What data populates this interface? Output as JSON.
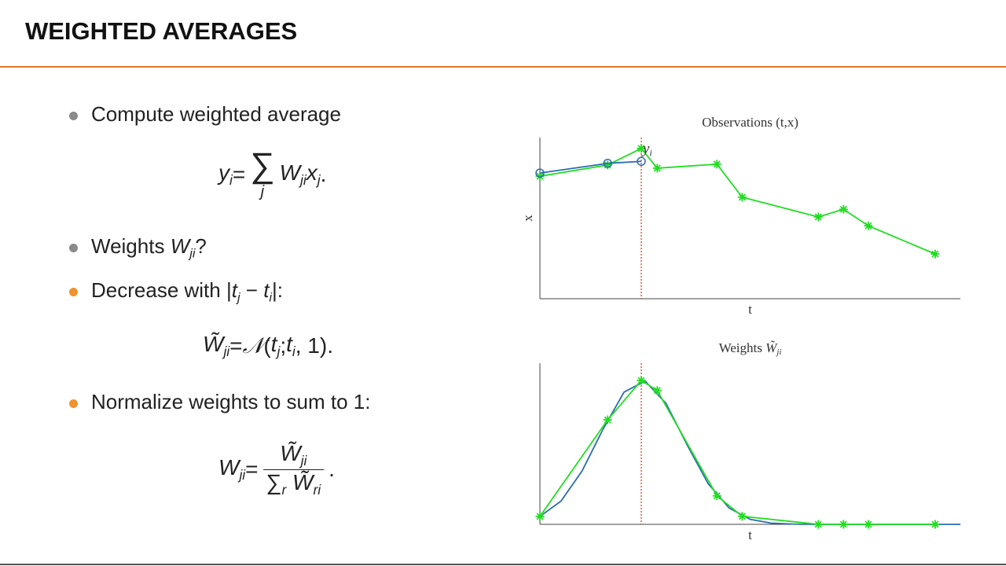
{
  "header": {
    "title": "WEIGHTED AVERAGES"
  },
  "bullets": [
    {
      "color": "#8a8a8a",
      "text": [
        {
          "n": "Compute weighted average"
        }
      ],
      "formula": [
        {
          "t": "y",
          "s": "i"
        },
        {
          "n": " = "
        },
        {
          "big": "∑",
          "under": "j"
        },
        {
          "t": "W",
          "s": "ji"
        },
        {
          "t": "x",
          "s": "j"
        },
        {
          "n": "."
        }
      ]
    },
    {
      "color": "#8a8a8a",
      "text": [
        {
          "n": "Weights "
        },
        {
          "t": "W",
          "s": "ji"
        },
        {
          "n": "?"
        }
      ]
    },
    {
      "color": "#f0922e",
      "text": [
        {
          "n": "Decrease with |"
        },
        {
          "t": "t",
          "s": "j"
        },
        {
          "n": " − "
        },
        {
          "t": "t",
          "s": "i"
        },
        {
          "n": "|:"
        }
      ],
      "formula": [
        {
          "t": "W̃",
          "s": "ji"
        },
        {
          "n": " = "
        },
        {
          "t": "𝒩"
        },
        {
          "n": "("
        },
        {
          "t": "t",
          "s": "j"
        },
        {
          "n": "; "
        },
        {
          "t": "t",
          "s": "i"
        },
        {
          "n": ", 1)."
        }
      ]
    },
    {
      "color": "#f0922e",
      "text": [
        {
          "n": "Normalize weights to sum to 1:"
        }
      ],
      "formula": [
        {
          "t": "W",
          "s": "ji"
        },
        {
          "n": " = "
        },
        {
          "num": [
            {
              "t": "W̃",
              "s": "ji"
            }
          ],
          "den": [
            {
              "n": "∑"
            },
            {
              "t": "",
              "s": "r"
            },
            {
              "n": " "
            },
            {
              "t": "W̃",
              "s": "ri"
            }
          ]
        },
        {
          "n": "."
        }
      ]
    }
  ],
  "chart_data": [
    {
      "type": "line",
      "title": "Observations (t,x)",
      "xlabel": "t",
      "ylabel": "x",
      "xlim": [
        0,
        10
      ],
      "ylim": [
        0,
        4
      ],
      "vline": 2.41,
      "vline_color": "#d9402b",
      "annotation": {
        "t": "y",
        "s": "i"
      },
      "series": [
        {
          "color": "#22dd22",
          "marker": "star",
          "x": [
            0,
            1.61,
            2.41,
            2.79,
            4.21,
            4.81,
            6.62,
            7.22,
            7.81,
            9.4
          ],
          "values": [
            3.04,
            3.32,
            3.73,
            3.24,
            3.34,
            2.52,
            2.03,
            2.22,
            1.81,
            1.11
          ]
        },
        {
          "color": "#2a6cb0",
          "marker": "circle",
          "x": [
            0,
            1.61,
            2.41
          ],
          "values": [
            3.12,
            3.36,
            3.41
          ]
        }
      ]
    },
    {
      "type": "line",
      "title": "Weights ",
      "title_math": {
        "t": "W̃",
        "s": "ji"
      },
      "xlabel": "t",
      "xlim": [
        0,
        10
      ],
      "ylim": [
        0,
        1.12
      ],
      "vline": 2.41,
      "vline_color": "#d9402b",
      "series": [
        {
          "color": "#2a6cb0",
          "marker": "none",
          "x": [
            0,
            0.5,
            1,
            1.5,
            2,
            2.5,
            3,
            3.5,
            4,
            4.5,
            5,
            5.5,
            6,
            6.5,
            7,
            7.5,
            8,
            8.5,
            9,
            9.5,
            10
          ],
          "values": [
            0.055,
            0.161,
            0.37,
            0.661,
            0.919,
            0.996,
            0.84,
            0.552,
            0.283,
            0.113,
            0.035,
            0.008,
            0.002,
            0,
            0,
            0,
            0,
            0,
            0,
            0,
            0
          ]
        },
        {
          "color": "#22dd22",
          "marker": "star",
          "x": [
            0,
            1.61,
            2.41,
            2.79,
            4.21,
            4.81,
            6.62,
            7.22,
            7.81,
            9.4
          ],
          "values": [
            0.055,
            0.726,
            1,
            0.93,
            0.198,
            0.056,
            0,
            0,
            0,
            0
          ]
        }
      ]
    }
  ]
}
